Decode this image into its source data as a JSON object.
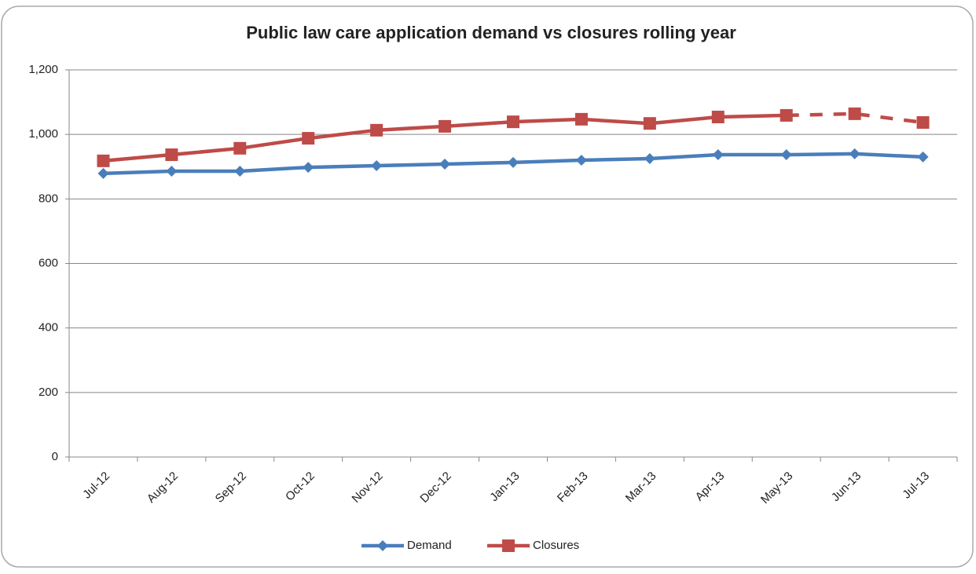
{
  "chart_data": {
    "type": "line",
    "title": "Public law care application demand vs closures rolling year",
    "categories": [
      "Jul-12",
      "Aug-12",
      "Sep-12",
      "Oct-12",
      "Nov-12",
      "Dec-12",
      "Jan-13",
      "Feb-13",
      "Mar-13",
      "Apr-13",
      "May-13",
      "Jun-13",
      "Jul-13"
    ],
    "series": [
      {
        "name": "Demand",
        "color": "#4a7ebb",
        "marker": "diamond",
        "values": [
          879,
          886,
          886,
          898,
          903,
          908,
          913,
          920,
          925,
          937,
          937,
          940,
          930
        ]
      },
      {
        "name": "Closures",
        "color": "#be4b48",
        "marker": "square",
        "dash_start_index": 10,
        "values": [
          918,
          937,
          957,
          988,
          1013,
          1025,
          1039,
          1047,
          1034,
          1054,
          1059,
          1064,
          1037
        ]
      }
    ],
    "ylim": [
      0,
      1200
    ],
    "yticks": [
      0,
      200,
      400,
      600,
      800,
      {
        "value": 1000,
        "label": "1,000"
      },
      {
        "value": 1200,
        "label": "1,200"
      }
    ],
    "grid": true,
    "legend": "bottom"
  }
}
